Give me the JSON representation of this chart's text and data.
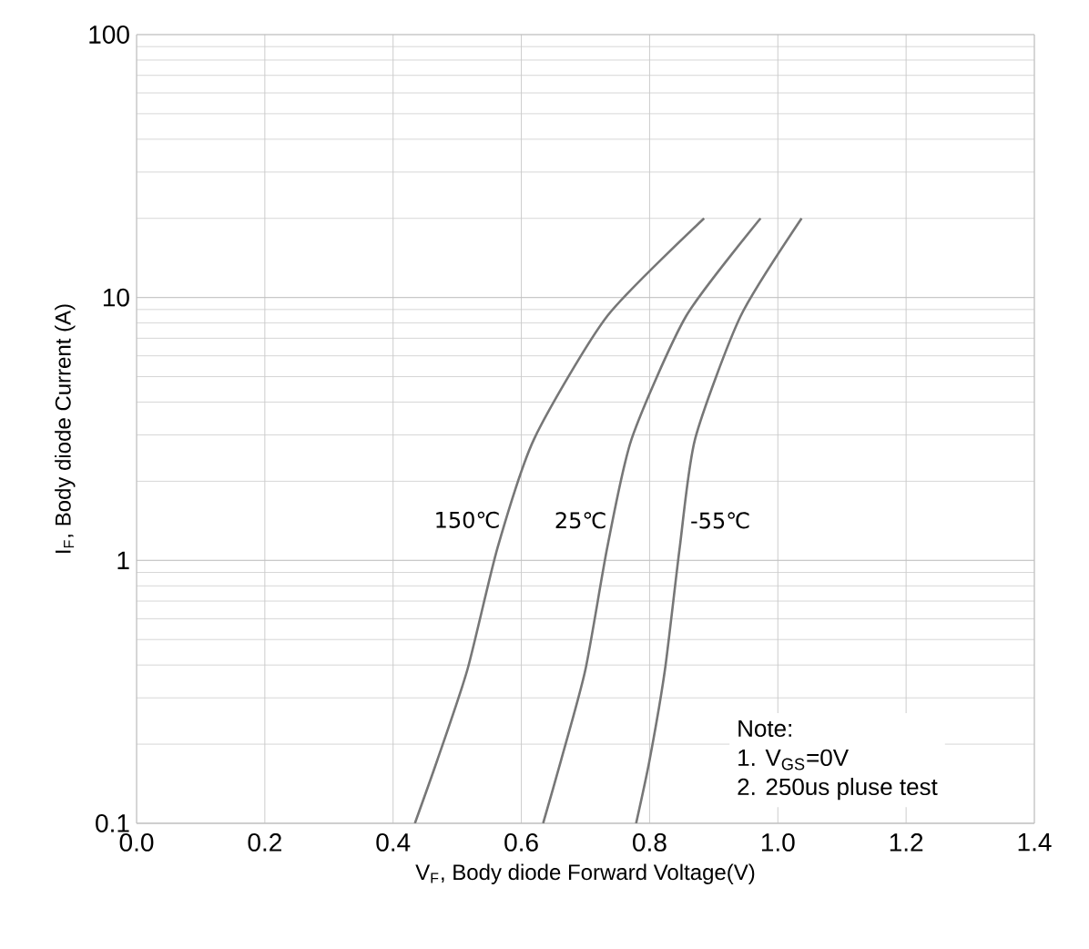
{
  "chart_data": {
    "type": "line",
    "xlabel": "V$_{F}$, Body diode Forward Voltage(V)",
    "ylabel": "I$_{F}$, Body diode Current (A)",
    "log": "y",
    "grid": true,
    "marker": "none",
    "line_style": "solid",
    "xlim": [
      0,
      1.4
    ],
    "ylim": [
      0.1,
      100
    ],
    "xticks": [
      {
        "value": 0,
        "label": "0.0"
      },
      0.2,
      0.4,
      0.6,
      0.8,
      {
        "value": 1,
        "label": "1.0"
      },
      1.2,
      1.4
    ],
    "yticks": [
      0.1,
      1,
      10,
      100
    ],
    "series": [
      {
        "name": "150℃",
        "color": "#777777",
        "x": [
          0.434,
          0.469,
          0.516,
          0.563,
          0.62,
          0.734,
          0.885
        ],
        "values": [
          0.1,
          0.174,
          0.385,
          1.12,
          2.9,
          8.5,
          20
        ]
      },
      {
        "name": "25℃",
        "color": "#777777",
        "x": [
          0.634,
          0.662,
          0.7,
          0.734,
          0.772,
          0.857,
          0.973
        ],
        "values": [
          0.1,
          0.174,
          0.385,
          1.12,
          2.9,
          8.5,
          20
        ]
      },
      {
        "name": "-55℃",
        "color": "#777777",
        "x": [
          0.779,
          0.8,
          0.824,
          0.847,
          0.871,
          0.942,
          1.037
        ],
        "values": [
          0.1,
          0.174,
          0.385,
          1.12,
          2.9,
          8.5,
          20
        ]
      }
    ],
    "annotations": [
      "Note:",
      "1. V$_{GS}$=0V",
      "2. 250us pluse test"
    ]
  }
}
